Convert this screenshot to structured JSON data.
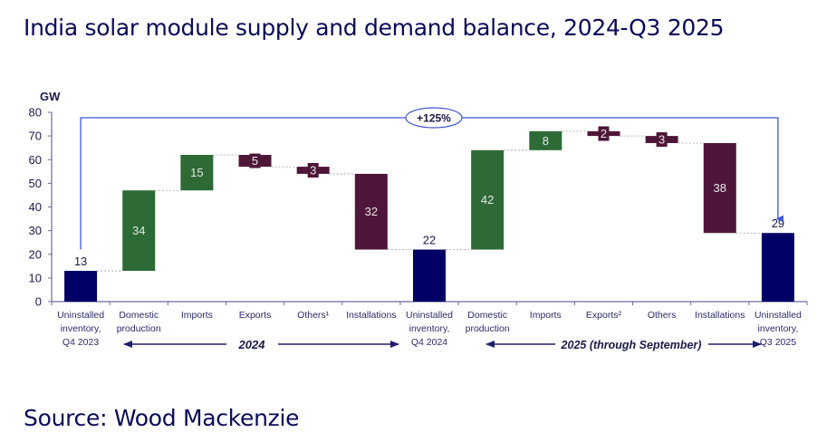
{
  "title": "India solar module supply and demand balance, 2024-Q3 2025",
  "source": "Source: Wood Mackenzie",
  "colors": {
    "inventory": "#000066",
    "increase": "#2d6a35",
    "decrease": "#4e1638",
    "bracket": "#3d55d6",
    "axis": "#6a6a9a",
    "text": "#0a0a5a"
  },
  "chart_data": {
    "type": "bar",
    "subtype": "waterfall",
    "title": "India solar module supply and demand balance, 2024-Q3 2025",
    "ylabel": "GW",
    "xlabel": "",
    "ylim": [
      0,
      80
    ],
    "yticks": [
      0,
      10,
      20,
      30,
      40,
      50,
      60,
      70,
      80
    ],
    "grid": false,
    "categories": [
      "Uninstalled inventory, Q4 2023",
      "Domestic production",
      "Imports",
      "Exports",
      "Others¹",
      "Installations",
      "Uninstalled inventory, Q4 2024",
      "Domestic production",
      "Imports",
      "Exports²",
      "Others",
      "Installations",
      "Uninstalled inventory, Q3 2025"
    ],
    "values": [
      13,
      34,
      15,
      -5,
      -3,
      -32,
      22,
      42,
      8,
      -2,
      -3,
      -38,
      29
    ],
    "bars": [
      {
        "label": "13",
        "kind": "inventory",
        "bottom": 0,
        "top": 13
      },
      {
        "label": "34",
        "kind": "increase",
        "bottom": 13,
        "top": 47
      },
      {
        "label": "15",
        "kind": "increase",
        "bottom": 47,
        "top": 62
      },
      {
        "label": "5",
        "kind": "decrease",
        "bottom": 57,
        "top": 62
      },
      {
        "label": "3",
        "kind": "decrease",
        "bottom": 54,
        "top": 57
      },
      {
        "label": "32",
        "kind": "decrease",
        "bottom": 22,
        "top": 54
      },
      {
        "label": "22",
        "kind": "inventory",
        "bottom": 0,
        "top": 22
      },
      {
        "label": "42",
        "kind": "increase",
        "bottom": 22,
        "top": 64
      },
      {
        "label": "8",
        "kind": "increase",
        "bottom": 64,
        "top": 72
      },
      {
        "label": "2",
        "kind": "decrease",
        "bottom": 70,
        "top": 72
      },
      {
        "label": "3",
        "kind": "decrease",
        "bottom": 67,
        "top": 70
      },
      {
        "label": "38",
        "kind": "decrease",
        "bottom": 29,
        "top": 67
      },
      {
        "label": "29",
        "kind": "inventory",
        "bottom": 0,
        "top": 29
      }
    ],
    "annotations": [
      {
        "text": "+125%",
        "type": "bracket-arrow",
        "from": "Uninstalled inventory, Q4 2023",
        "to": "Uninstalled inventory, Q3 2025"
      },
      {
        "text": "2024",
        "type": "period-arrow",
        "span": [
          "Domestic production",
          "Installations"
        ]
      },
      {
        "text": "2025 (through September)",
        "type": "period-arrow",
        "span": [
          "Domestic production",
          "Installations"
        ]
      }
    ]
  }
}
